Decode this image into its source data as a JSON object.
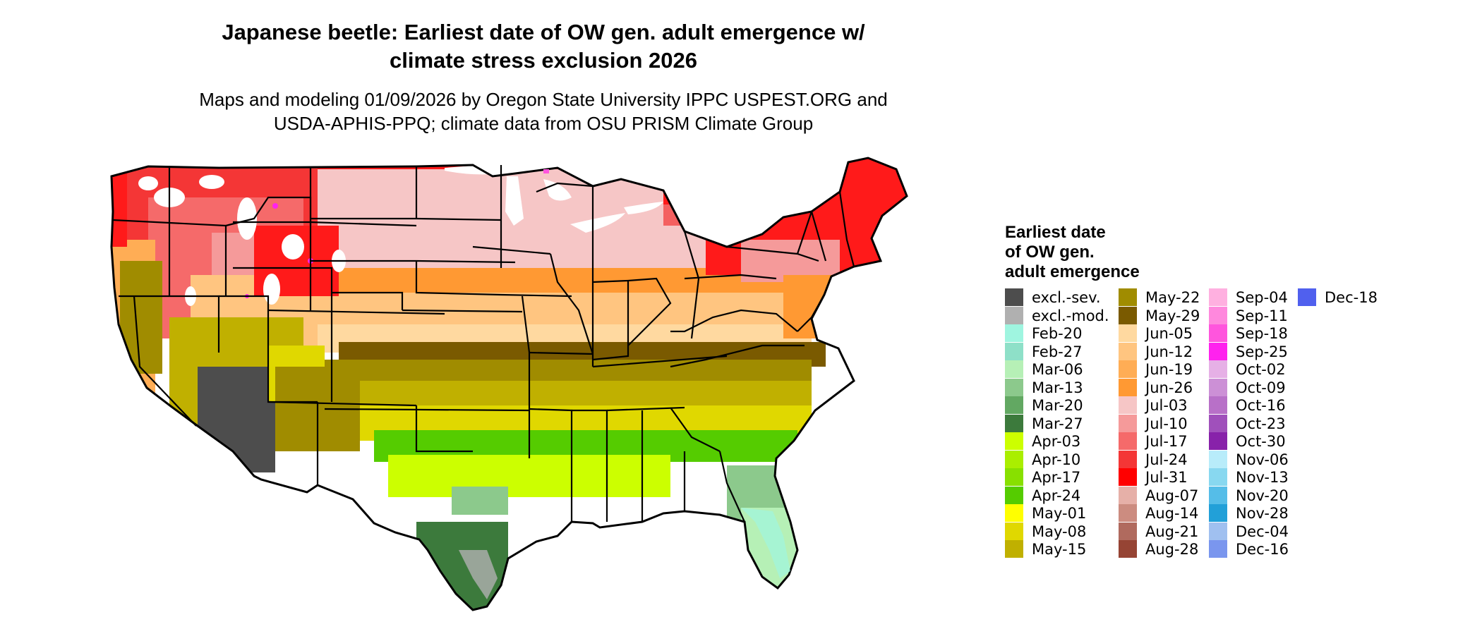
{
  "title_line1": "Japanese beetle: Earliest date of OW gen. adult emergence w/",
  "title_line2": "climate stress exclusion 2026",
  "subtitle_line1": "Maps and modeling 01/09/2026 by Oregon State University IPPC USPEST.ORG and",
  "subtitle_line2": "USDA-APHIS-PPQ; climate data from OSU PRISM Climate Group",
  "legend": {
    "title_line1": "Earliest date",
    "title_line2": "of OW gen.",
    "title_line3": "adult emergence",
    "columns": [
      [
        {
          "label": "excl.-sev.",
          "color": "#4d4d4d"
        },
        {
          "label": "excl.-mod.",
          "color": "#b0b0b0"
        },
        {
          "label": "Feb-20",
          "color": "#9ff5e0"
        },
        {
          "label": "Feb-27",
          "color": "#8ee0c8"
        },
        {
          "label": "Mar-06",
          "color": "#b6f0b6"
        },
        {
          "label": "Mar-13",
          "color": "#8cc98c"
        },
        {
          "label": "Mar-20",
          "color": "#62a862"
        },
        {
          "label": "Mar-27",
          "color": "#3c7a3c"
        },
        {
          "label": "Apr-03",
          "color": "#ccff00"
        },
        {
          "label": "Apr-10",
          "color": "#aaee00"
        },
        {
          "label": "Apr-17",
          "color": "#88e000"
        },
        {
          "label": "Apr-24",
          "color": "#55cc00"
        },
        {
          "label": "May-01",
          "color": "#ffff00"
        },
        {
          "label": "May-08",
          "color": "#e0d800"
        },
        {
          "label": "May-15",
          "color": "#c0b000"
        }
      ],
      [
        {
          "label": "May-22",
          "color": "#a08c00"
        },
        {
          "label": "May-29",
          "color": "#7a5a00"
        },
        {
          "label": "Jun-05",
          "color": "#ffd9a0"
        },
        {
          "label": "Jun-12",
          "color": "#ffc580"
        },
        {
          "label": "Jun-19",
          "color": "#ffad55"
        },
        {
          "label": "Jun-26",
          "color": "#ff9933"
        },
        {
          "label": "Jul-03",
          "color": "#f6c6c6"
        },
        {
          "label": "Jul-10",
          "color": "#f59a9a"
        },
        {
          "label": "Jul-17",
          "color": "#f56a6a"
        },
        {
          "label": "Jul-24",
          "color": "#f43636"
        },
        {
          "label": "Jul-31",
          "color": "#ff0000"
        },
        {
          "label": "Aug-07",
          "color": "#e6b0a8"
        },
        {
          "label": "Aug-14",
          "color": "#cc8c80"
        },
        {
          "label": "Aug-21",
          "color": "#b06a5e"
        },
        {
          "label": "Aug-28",
          "color": "#964434"
        }
      ],
      [
        {
          "label": "Sep-04",
          "color": "#ffb0e0"
        },
        {
          "label": "Sep-11",
          "color": "#ff88dd"
        },
        {
          "label": "Sep-18",
          "color": "#ff55dd"
        },
        {
          "label": "Sep-25",
          "color": "#ff22ee"
        },
        {
          "label": "Oct-02",
          "color": "#e6b0e6"
        },
        {
          "label": "Oct-09",
          "color": "#cc90d6"
        },
        {
          "label": "Oct-16",
          "color": "#b870c8"
        },
        {
          "label": "Oct-23",
          "color": "#a050bb"
        },
        {
          "label": "Oct-30",
          "color": "#8822aa"
        },
        {
          "label": "Nov-06",
          "color": "#b8ecfa"
        },
        {
          "label": "Nov-13",
          "color": "#88d8f0"
        },
        {
          "label": "Nov-20",
          "color": "#55bde8"
        },
        {
          "label": "Nov-28",
          "color": "#22a0d8"
        },
        {
          "label": "Dec-04",
          "color": "#a0c0f0"
        },
        {
          "label": "Dec-16",
          "color": "#7a96ee"
        }
      ],
      [
        {
          "label": "Dec-18",
          "color": "#5060ee"
        }
      ]
    ]
  }
}
